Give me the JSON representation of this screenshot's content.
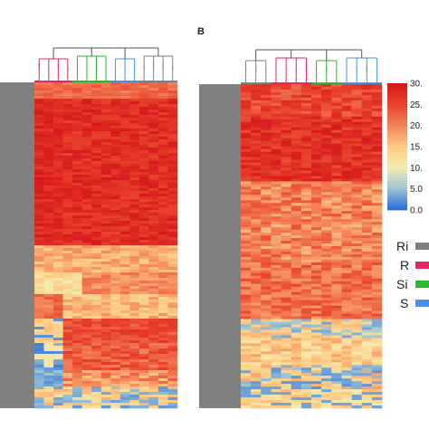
{
  "chart_data": [
    {
      "type": "heatmap",
      "panel": "",
      "column_clusters": [
        {
          "group": "R",
          "count": 4
        },
        {
          "group": "Si",
          "count": 4
        },
        {
          "group": "S",
          "count": 3
        },
        {
          "group": "Ri",
          "count": 4
        }
      ]
    },
    {
      "type": "heatmap",
      "panel": "B",
      "column_clusters": [
        {
          "group": "Ri",
          "count": 3
        },
        {
          "group": "R",
          "count": 4
        },
        {
          "group": "Si",
          "count": 3
        },
        {
          "group": "S",
          "count": 4
        }
      ]
    }
  ],
  "colorbar": {
    "ticks": [
      "30.",
      "25.",
      "20.",
      "15.",
      "10.",
      "5.0",
      "0.0"
    ],
    "values": [
      30,
      25,
      20,
      15,
      10,
      5,
      0
    ],
    "colors": [
      "#d7191c",
      "#e8432d",
      "#f4845a",
      "#fec981",
      "#f3ecb0",
      "#9fc6d4",
      "#2b6fd8"
    ]
  },
  "legend": {
    "items": [
      {
        "label": "Ri",
        "color": "#808080"
      },
      {
        "label": "R",
        "color": "#e8265e"
      },
      {
        "label": "Si",
        "color": "#2eb82e"
      },
      {
        "label": "S",
        "color": "#4a90e2"
      }
    ]
  }
}
